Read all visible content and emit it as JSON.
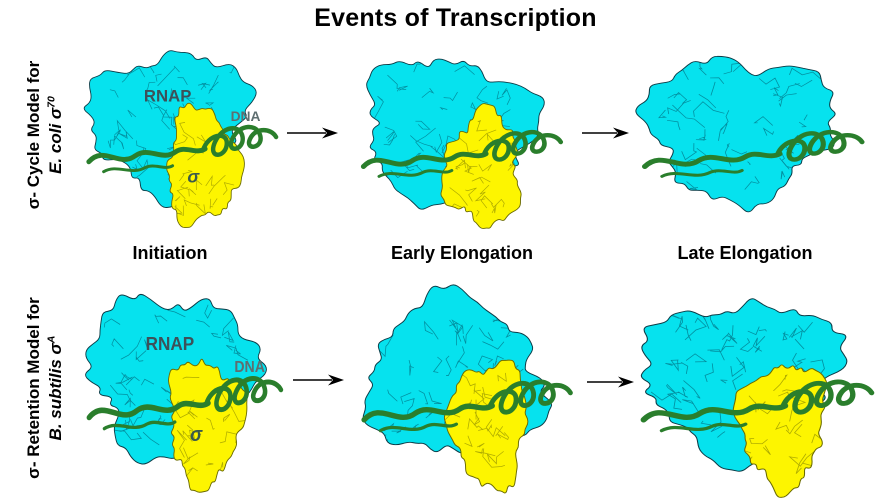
{
  "title": "Events of Transcription",
  "stage_labels": [
    "Initiation",
    "Early Elongation",
    "Late Elongation"
  ],
  "rows": [
    {
      "name": "sigma-cycle-model",
      "label_line1": "σ- Cycle Model for",
      "label_species": "E. coli",
      "label_sigma": "σ",
      "label_sup": "70",
      "panels": [
        {
          "stage": "Initiation",
          "has_sigma": true,
          "molecule_labels": {
            "rnap": "RNAP",
            "dna": "DNA",
            "sigma": "σ"
          }
        },
        {
          "stage": "Early Elongation",
          "has_sigma": true
        },
        {
          "stage": "Late Elongation",
          "has_sigma": false
        }
      ]
    },
    {
      "name": "sigma-retention-model",
      "label_line1": "σ- Retention Model for",
      "label_species": "B. subtilis",
      "label_sigma": "σ",
      "label_sup": "A",
      "panels": [
        {
          "stage": "Initiation",
          "has_sigma": true,
          "molecule_labels": {
            "rnap": "RNAP",
            "dna": "DNA",
            "sigma": "σ"
          }
        },
        {
          "stage": "Early Elongation",
          "has_sigma": true
        },
        {
          "stage": "Late Elongation",
          "has_sigma": true
        }
      ]
    }
  ],
  "colors": {
    "background": "#ffffff",
    "rnap_surface": "#06e2ee",
    "sigma_surface": "#fdf500",
    "dna_ribbon": "#2a7e2c",
    "outline": "#0b3b46",
    "sigma_outline": "#6b6b00",
    "label_rnap": "#3d5159",
    "label_dna": "#5e6e70",
    "label_sigma": "#3a5a4c",
    "arrow": "#000000"
  }
}
